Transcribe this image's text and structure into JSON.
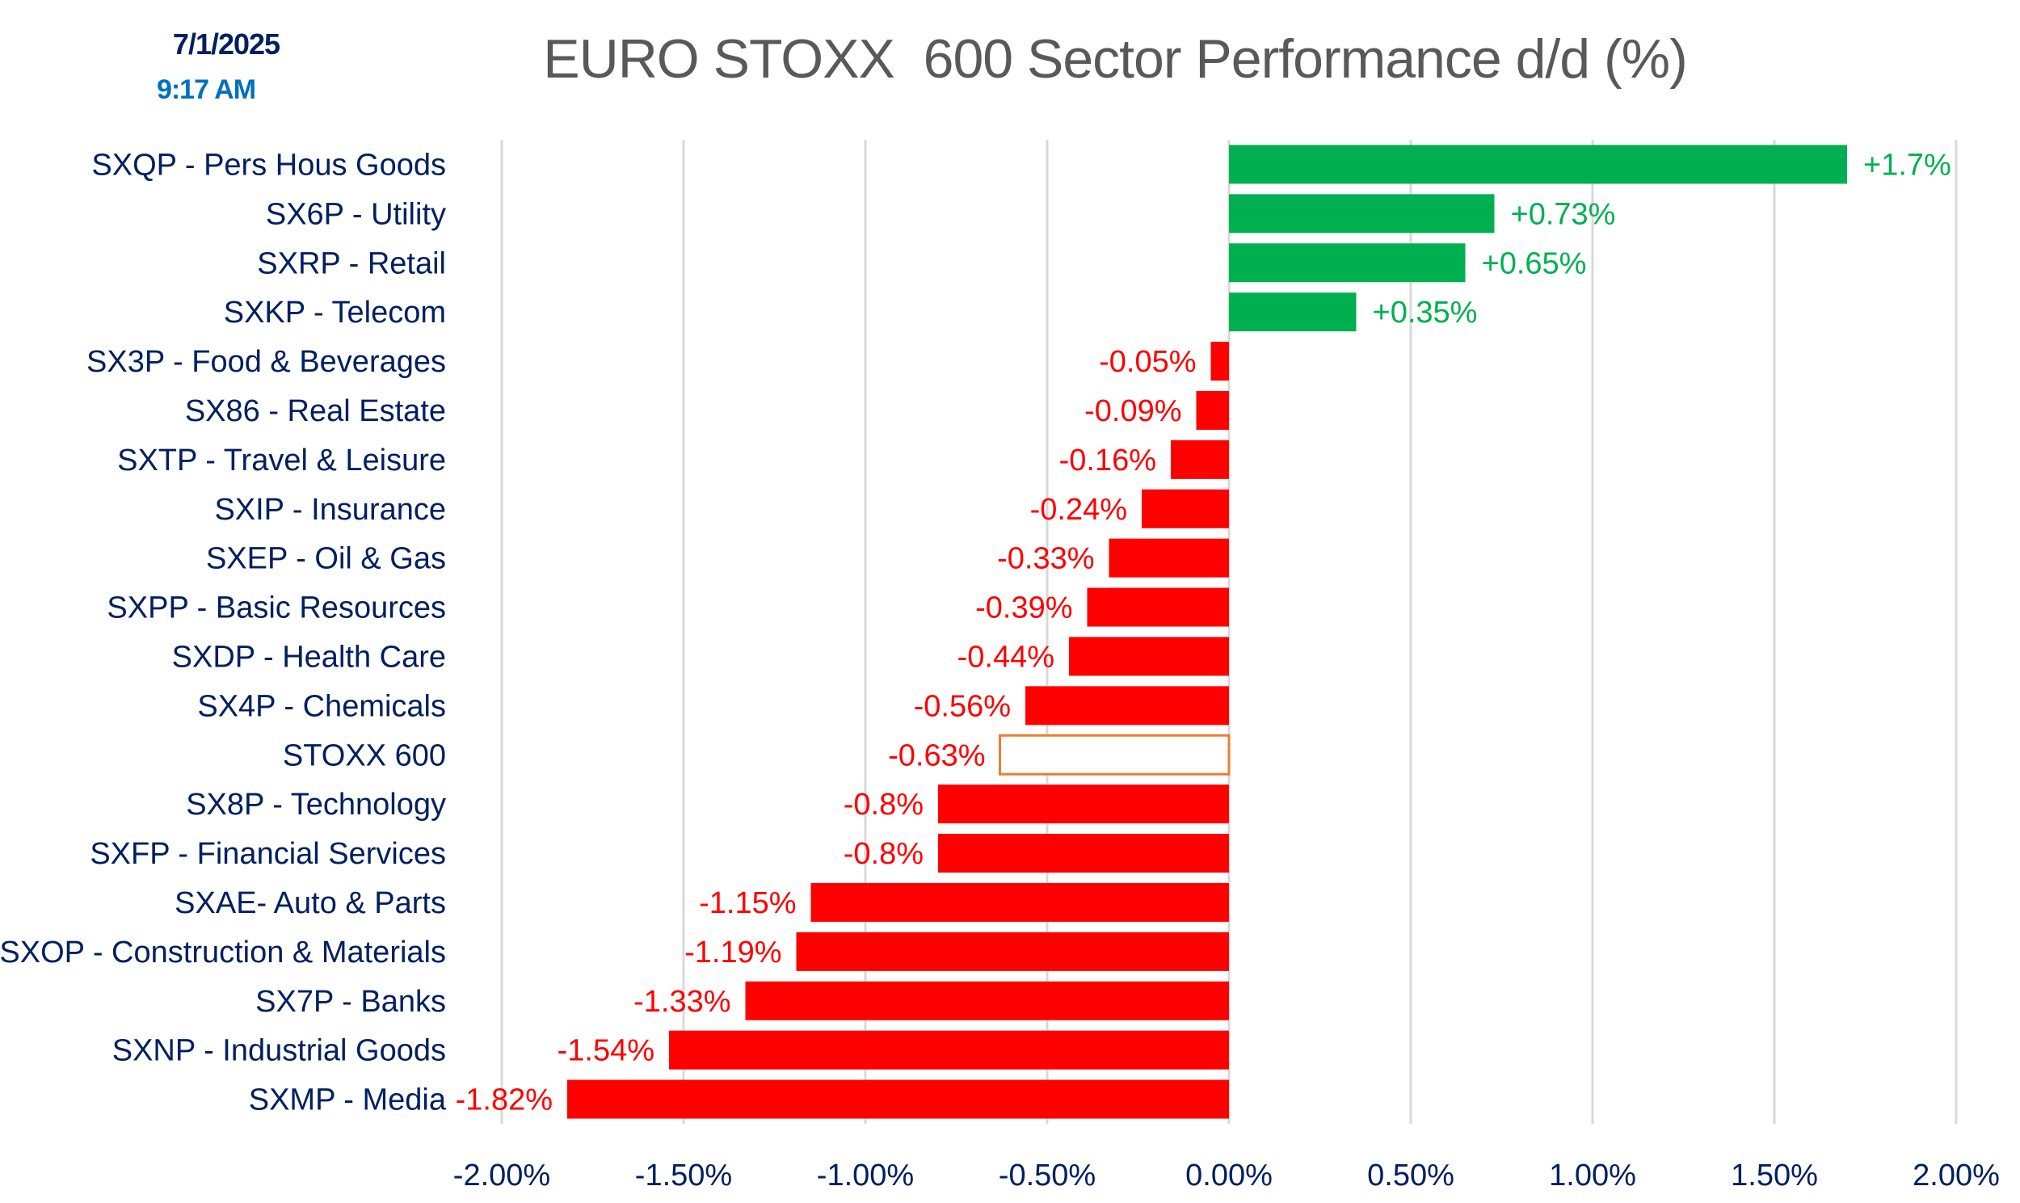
{
  "header": {
    "date": "7/1/2025",
    "time": "9:17 AM"
  },
  "colors": {
    "positive": "#00B050",
    "negative": "#FF0000",
    "benchmark_outline": "#ED7D31",
    "benchmark_fill": "#FFFFFF",
    "category_text": "#002060",
    "tick_text": "#002060",
    "title_text": "#595959",
    "gridline": "#D9D9D9"
  },
  "chart_data": {
    "type": "bar",
    "orientation": "horizontal",
    "title": "EURO STOXX  600 Sector Performance d/d (%)",
    "xlabel": "",
    "ylabel": "",
    "xlim": [
      -2.0,
      2.0
    ],
    "x_ticks": [
      -2.0,
      -1.5,
      -1.0,
      -0.5,
      0.0,
      0.5,
      1.0,
      1.5,
      2.0
    ],
    "x_tick_labels": [
      "-2.00%",
      "-1.50%",
      "-1.00%",
      "-0.50%",
      "0.00%",
      "0.50%",
      "1.00%",
      "1.50%",
      "2.00%"
    ],
    "grid": "vertical",
    "legend": "none",
    "categories": [
      "SXQP - Pers Hous Goods",
      "SX6P - Utility",
      "SXRP - Retail",
      "SXKP - Telecom",
      "SX3P - Food & Beverages",
      "SX86 - Real Estate",
      "SXTP - Travel & Leisure",
      "SXIP - Insurance",
      "SXEP - Oil & Gas",
      "SXPP - Basic Resources",
      "SXDP - Health Care",
      "SX4P - Chemicals",
      "STOXX 600",
      "SX8P - Technology",
      "SXFP - Financial Services",
      "SXAE- Auto & Parts",
      "SXOP - Construction & Materials",
      "SX7P - Banks",
      "SXNP - Industrial Goods",
      "SXMP - Media"
    ],
    "values": [
      1.7,
      0.73,
      0.65,
      0.35,
      -0.05,
      -0.09,
      -0.16,
      -0.24,
      -0.33,
      -0.39,
      -0.44,
      -0.56,
      -0.63,
      -0.8,
      -0.8,
      -1.15,
      -1.19,
      -1.33,
      -1.54,
      -1.82
    ],
    "data_labels": [
      "+1.7%",
      "+0.73%",
      "+0.65%",
      "+0.35%",
      "-0.05%",
      "-0.09%",
      "-0.16%",
      "-0.24%",
      "-0.33%",
      "-0.39%",
      "-0.44%",
      "-0.56%",
      "-0.63%",
      "-0.8%",
      "-0.8%",
      "-1.15%",
      "-1.19%",
      "-1.33%",
      "-1.54%",
      "-1.82%"
    ],
    "benchmark_category": "STOXX 600"
  }
}
